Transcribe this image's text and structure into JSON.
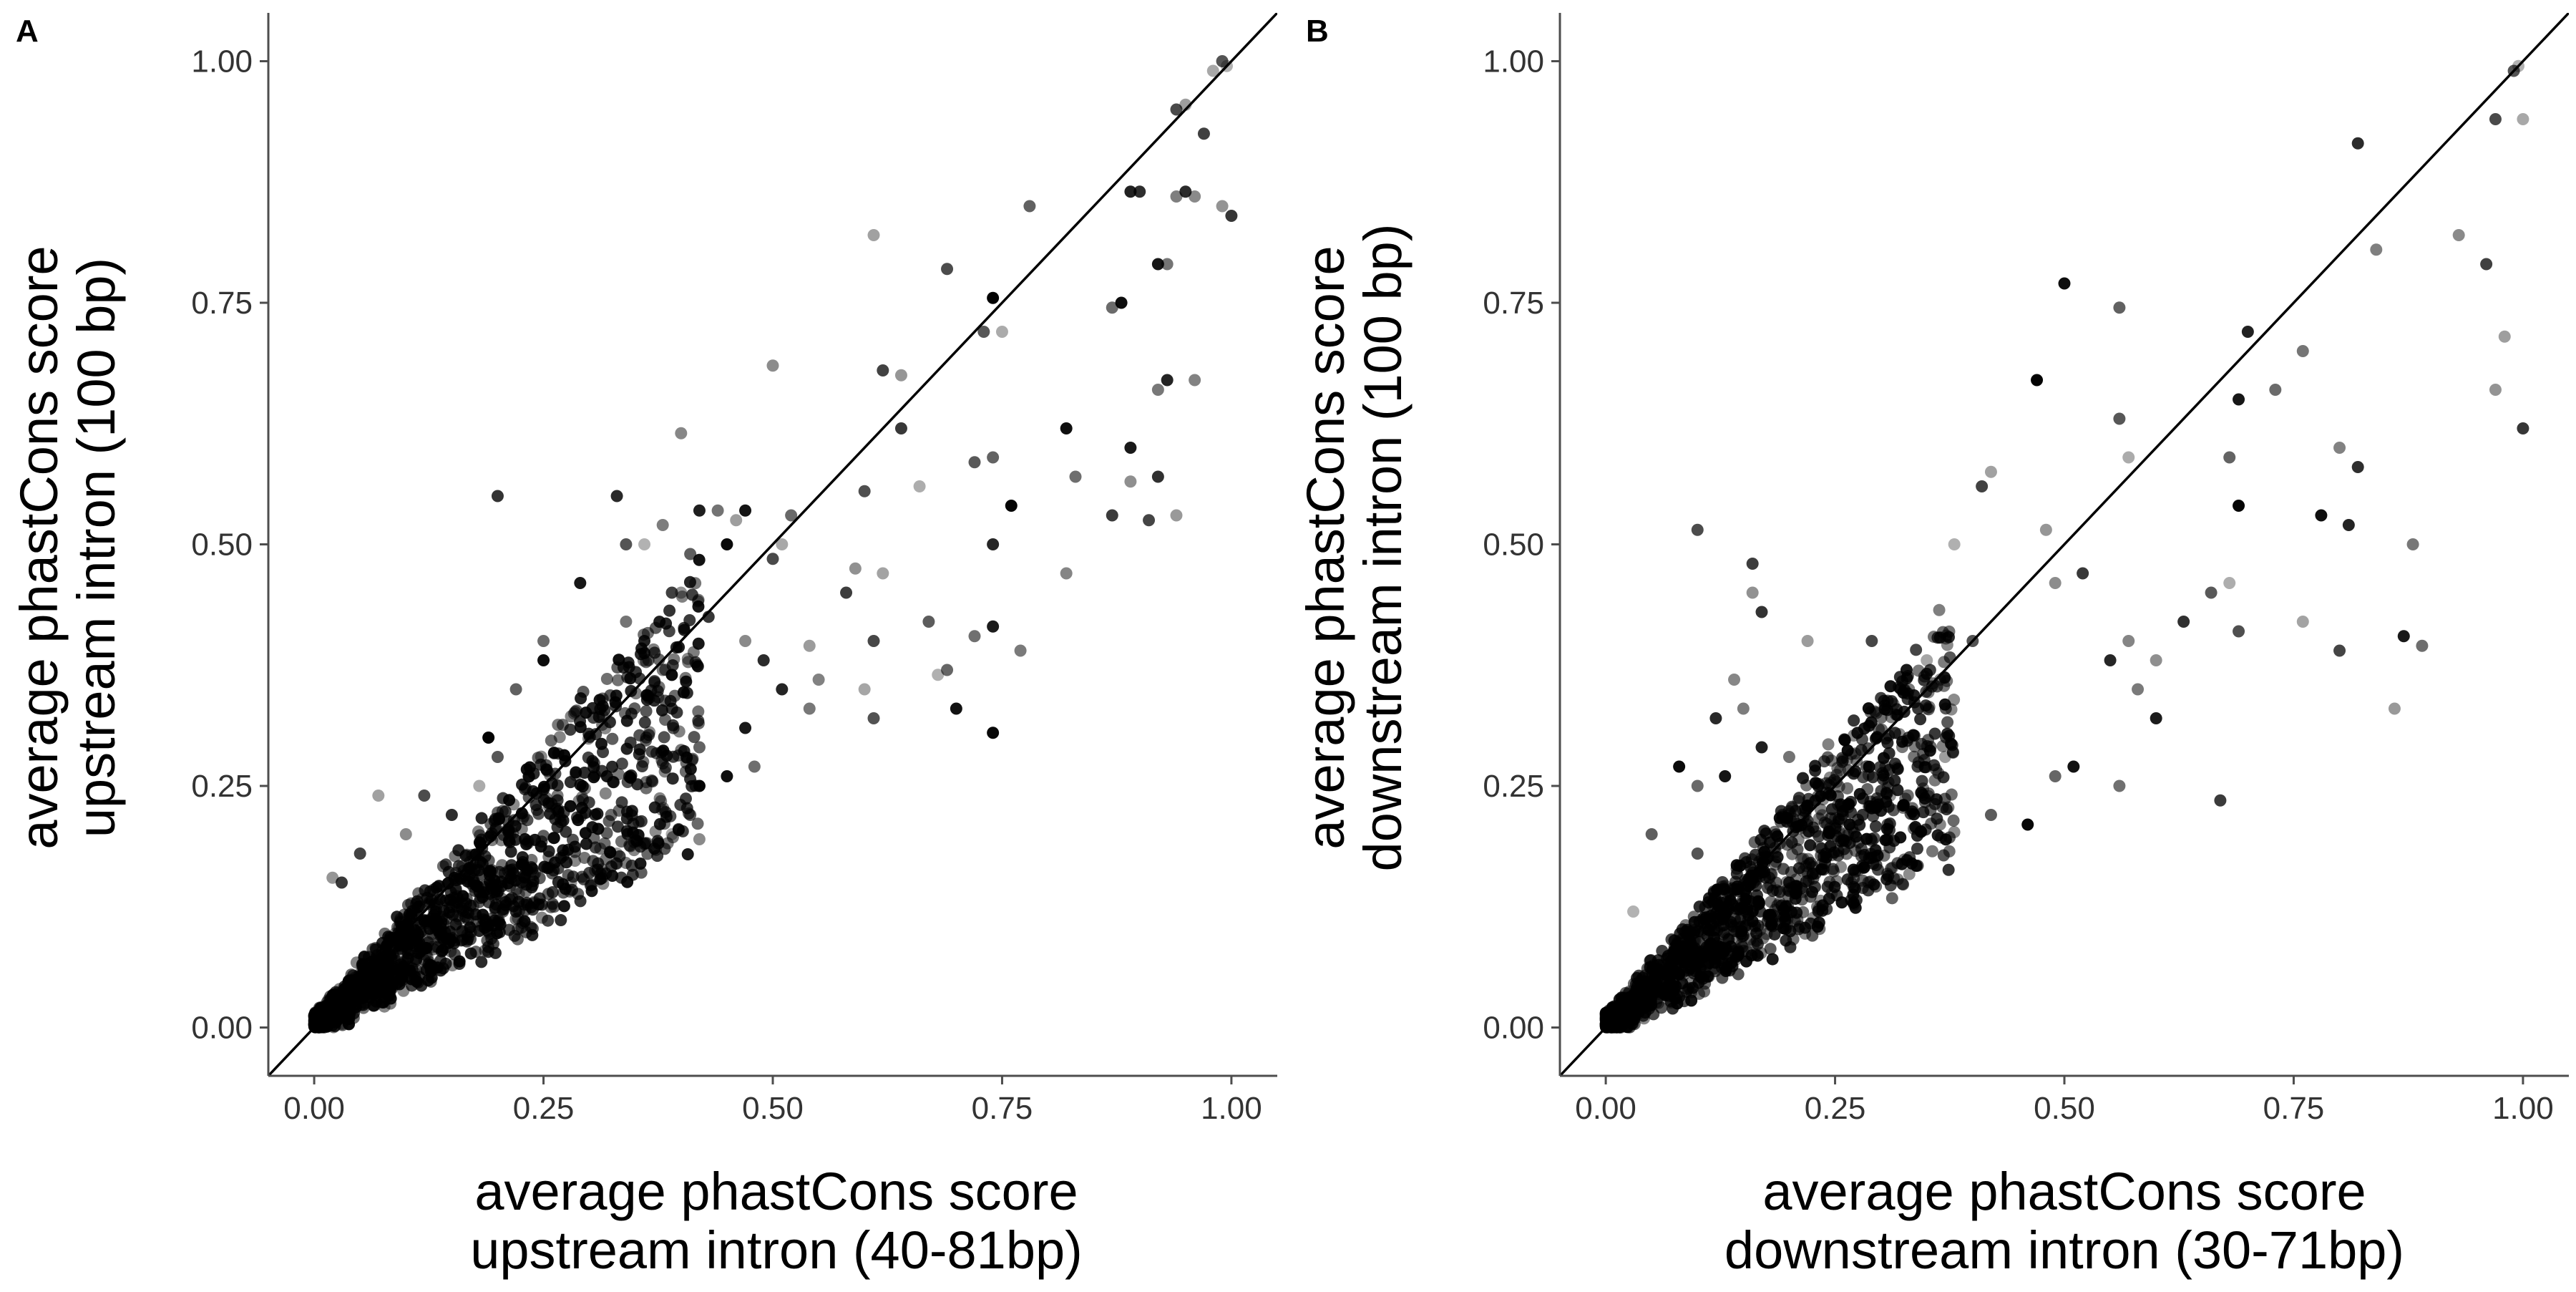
{
  "panels": [
    {
      "letter": "A",
      "xlabel": [
        "average phastCons score",
        "upstream intron (40-81bp)"
      ],
      "ylabel": [
        "average phastCons score",
        "upstream intron (100 bp)"
      ]
    },
    {
      "letter": "B",
      "xlabel": [
        "average phastCons score",
        "downstream intron (30-71bp)"
      ],
      "ylabel": [
        "average phastCons score",
        "downstream intron (100 bp)"
      ]
    }
  ],
  "chart_data": [
    {
      "type": "scatter",
      "panel": "A",
      "title": "",
      "xlabel": "average phastCons score upstream intron (40-81bp)",
      "ylabel": "average phastCons score upstream intron (100 bp)",
      "xlim": [
        -0.05,
        1.05
      ],
      "ylim": [
        -0.05,
        1.05
      ],
      "xticks": [
        "0.00",
        "0.25",
        "0.50",
        "0.75",
        "1.00"
      ],
      "yticks": [
        "0.00",
        "0.25",
        "0.50",
        "0.75",
        "1.00"
      ],
      "reference_line": {
        "slope": 1,
        "intercept": 0
      },
      "point_color": "#000000",
      "grid": false,
      "legend": "none",
      "points": [
        [
          0.995,
          0.995
        ],
        [
          0.99,
          1.0
        ],
        [
          0.98,
          0.99
        ],
        [
          0.94,
          0.95
        ],
        [
          0.95,
          0.955
        ],
        [
          0.97,
          0.925
        ],
        [
          0.99,
          0.85
        ],
        [
          1.0,
          0.84
        ],
        [
          0.96,
          0.86
        ],
        [
          0.95,
          0.865
        ],
        [
          0.94,
          0.86
        ],
        [
          0.89,
          0.865
        ],
        [
          0.93,
          0.79
        ],
        [
          0.92,
          0.79
        ],
        [
          0.87,
          0.745
        ],
        [
          0.88,
          0.75
        ],
        [
          0.78,
          0.85
        ],
        [
          0.74,
          0.755
        ],
        [
          0.73,
          0.72
        ],
        [
          0.75,
          0.72
        ],
        [
          0.69,
          0.785
        ],
        [
          0.61,
          0.82
        ],
        [
          0.62,
          0.68
        ],
        [
          0.64,
          0.675
        ],
        [
          0.64,
          0.62
        ],
        [
          0.5,
          0.685
        ],
        [
          0.9,
          0.865
        ],
        [
          0.96,
          0.67
        ],
        [
          0.93,
          0.67
        ],
        [
          0.92,
          0.66
        ],
        [
          0.89,
          0.6
        ],
        [
          0.83,
          0.57
        ],
        [
          0.82,
          0.62
        ],
        [
          0.74,
          0.59
        ],
        [
          0.76,
          0.54
        ],
        [
          0.72,
          0.585
        ],
        [
          0.66,
          0.56
        ],
        [
          0.6,
          0.555
        ],
        [
          0.62,
          0.47
        ],
        [
          0.91,
          0.525
        ],
        [
          0.94,
          0.53
        ],
        [
          0.87,
          0.53
        ],
        [
          0.89,
          0.565
        ],
        [
          0.92,
          0.57
        ],
        [
          0.82,
          0.47
        ],
        [
          0.74,
          0.5
        ],
        [
          0.77,
          0.39
        ],
        [
          0.74,
          0.415
        ],
        [
          0.72,
          0.405
        ],
        [
          0.7,
          0.33
        ],
        [
          0.69,
          0.37
        ],
        [
          0.74,
          0.305
        ],
        [
          0.67,
          0.42
        ],
        [
          0.68,
          0.365
        ],
        [
          0.61,
          0.32
        ],
        [
          0.6,
          0.35
        ],
        [
          0.61,
          0.4
        ],
        [
          0.54,
          0.395
        ],
        [
          0.58,
          0.45
        ],
        [
          0.59,
          0.475
        ],
        [
          0.2,
          0.55
        ],
        [
          0.4,
          0.615
        ],
        [
          0.33,
          0.55
        ],
        [
          0.38,
          0.52
        ],
        [
          0.42,
          0.535
        ],
        [
          0.44,
          0.535
        ],
        [
          0.47,
          0.535
        ],
        [
          0.52,
          0.53
        ],
        [
          0.45,
          0.5
        ],
        [
          0.41,
          0.49
        ],
        [
          0.36,
          0.5
        ],
        [
          0.34,
          0.5
        ],
        [
          0.51,
          0.5
        ],
        [
          0.5,
          0.485
        ],
        [
          0.46,
          0.525
        ],
        [
          0.39,
          0.45
        ],
        [
          0.4,
          0.45
        ],
        [
          0.43,
          0.425
        ],
        [
          0.47,
          0.4
        ],
        [
          0.49,
          0.38
        ],
        [
          0.38,
          0.37
        ],
        [
          0.36,
          0.4
        ],
        [
          0.34,
          0.42
        ],
        [
          0.29,
          0.46
        ],
        [
          0.25,
          0.4
        ],
        [
          0.25,
          0.38
        ],
        [
          0.22,
          0.35
        ],
        [
          0.19,
          0.3
        ],
        [
          0.2,
          0.28
        ],
        [
          0.18,
          0.25
        ],
        [
          0.12,
          0.24
        ],
        [
          0.07,
          0.24
        ],
        [
          0.05,
          0.18
        ],
        [
          0.02,
          0.155
        ],
        [
          0.03,
          0.15
        ],
        [
          0.1,
          0.2
        ],
        [
          0.15,
          0.22
        ],
        [
          0.55,
          0.36
        ],
        [
          0.51,
          0.35
        ],
        [
          0.54,
          0.33
        ],
        [
          0.47,
          0.31
        ],
        [
          0.48,
          0.27
        ],
        [
          0.45,
          0.26
        ],
        [
          0.42,
          0.29
        ],
        [
          0.42,
          0.25
        ],
        [
          0.41,
          0.22
        ],
        [
          0.39,
          0.2
        ],
        [
          0.36,
          0.19
        ],
        [
          0.33,
          0.18
        ],
        [
          0.3,
          0.16
        ],
        [
          0.28,
          0.15
        ],
        [
          0.26,
          0.14
        ],
        [
          0.24,
          0.13
        ],
        [
          0.22,
          0.12
        ],
        [
          0.2,
          0.11
        ],
        [
          0.18,
          0.1
        ],
        [
          0.16,
          0.09
        ],
        [
          0.14,
          0.08
        ],
        [
          0.12,
          0.07
        ],
        [
          0.1,
          0.06
        ],
        [
          0.08,
          0.05
        ],
        [
          0.06,
          0.04
        ],
        [
          0.04,
          0.03
        ],
        [
          0.02,
          0.015
        ]
      ]
    },
    {
      "type": "scatter",
      "panel": "B",
      "title": "",
      "xlabel": "average phastCons score downstream intron (30-71bp)",
      "ylabel": "average phastCons score downstream intron (100 bp)",
      "xlim": [
        -0.05,
        1.05
      ],
      "ylim": [
        -0.05,
        1.05
      ],
      "xticks": [
        "0.00",
        "0.25",
        "0.50",
        "0.75",
        "1.00"
      ],
      "yticks": [
        "0.00",
        "0.25",
        "0.50",
        "0.75",
        "1.00"
      ],
      "reference_line": {
        "slope": 1,
        "intercept": 0
      },
      "point_color": "#000000",
      "grid": false,
      "legend": "none",
      "points": [
        [
          0.995,
          0.995
        ],
        [
          0.99,
          0.99
        ],
        [
          1.0,
          0.94
        ],
        [
          0.97,
          0.94
        ],
        [
          0.98,
          0.715
        ],
        [
          0.96,
          0.79
        ],
        [
          0.97,
          0.66
        ],
        [
          1.0,
          0.62
        ],
        [
          0.93,
          0.82
        ],
        [
          0.82,
          0.915
        ],
        [
          0.84,
          0.805
        ],
        [
          0.7,
          0.72
        ],
        [
          0.76,
          0.7
        ],
        [
          0.69,
          0.65
        ],
        [
          0.73,
          0.66
        ],
        [
          0.5,
          0.77
        ],
        [
          0.56,
          0.745
        ],
        [
          0.47,
          0.67
        ],
        [
          0.56,
          0.63
        ],
        [
          0.57,
          0.59
        ],
        [
          0.1,
          0.515
        ],
        [
          0.42,
          0.575
        ],
        [
          0.41,
          0.56
        ],
        [
          0.48,
          0.515
        ],
        [
          0.52,
          0.47
        ],
        [
          0.49,
          0.46
        ],
        [
          0.82,
          0.58
        ],
        [
          0.8,
          0.6
        ],
        [
          0.81,
          0.52
        ],
        [
          0.88,
          0.5
        ],
        [
          0.87,
          0.405
        ],
        [
          0.89,
          0.395
        ],
        [
          0.78,
          0.53
        ],
        [
          0.68,
          0.59
        ],
        [
          0.69,
          0.54
        ],
        [
          0.66,
          0.45
        ],
        [
          0.68,
          0.46
        ],
        [
          0.69,
          0.41
        ],
        [
          0.76,
          0.42
        ],
        [
          0.8,
          0.39
        ],
        [
          0.86,
          0.33
        ],
        [
          0.67,
          0.235
        ],
        [
          0.6,
          0.38
        ],
        [
          0.63,
          0.42
        ],
        [
          0.57,
          0.4
        ],
        [
          0.55,
          0.38
        ],
        [
          0.58,
          0.35
        ],
        [
          0.6,
          0.32
        ],
        [
          0.56,
          0.25
        ],
        [
          0.51,
          0.27
        ],
        [
          0.49,
          0.26
        ],
        [
          0.46,
          0.21
        ],
        [
          0.42,
          0.22
        ],
        [
          0.38,
          0.5
        ],
        [
          0.4,
          0.4
        ],
        [
          0.35,
          0.38
        ],
        [
          0.29,
          0.4
        ],
        [
          0.22,
          0.4
        ],
        [
          0.16,
          0.48
        ],
        [
          0.16,
          0.45
        ],
        [
          0.17,
          0.43
        ],
        [
          0.14,
          0.36
        ],
        [
          0.12,
          0.32
        ],
        [
          0.15,
          0.33
        ],
        [
          0.17,
          0.29
        ],
        [
          0.2,
          0.28
        ],
        [
          0.13,
          0.26
        ],
        [
          0.1,
          0.25
        ],
        [
          0.08,
          0.27
        ],
        [
          0.05,
          0.2
        ],
        [
          0.03,
          0.12
        ],
        [
          0.1,
          0.18
        ],
        [
          0.35,
          0.33
        ],
        [
          0.33,
          0.3
        ],
        [
          0.37,
          0.28
        ],
        [
          0.34,
          0.27
        ],
        [
          0.31,
          0.24
        ],
        [
          0.28,
          0.22
        ],
        [
          0.26,
          0.2
        ],
        [
          0.24,
          0.18
        ],
        [
          0.22,
          0.16
        ],
        [
          0.2,
          0.15
        ],
        [
          0.18,
          0.13
        ],
        [
          0.16,
          0.11
        ],
        [
          0.14,
          0.1
        ],
        [
          0.12,
          0.08
        ],
        [
          0.1,
          0.07
        ],
        [
          0.08,
          0.055
        ],
        [
          0.06,
          0.04
        ],
        [
          0.04,
          0.03
        ],
        [
          0.02,
          0.02
        ],
        [
          0.01,
          0.01
        ]
      ]
    }
  ]
}
